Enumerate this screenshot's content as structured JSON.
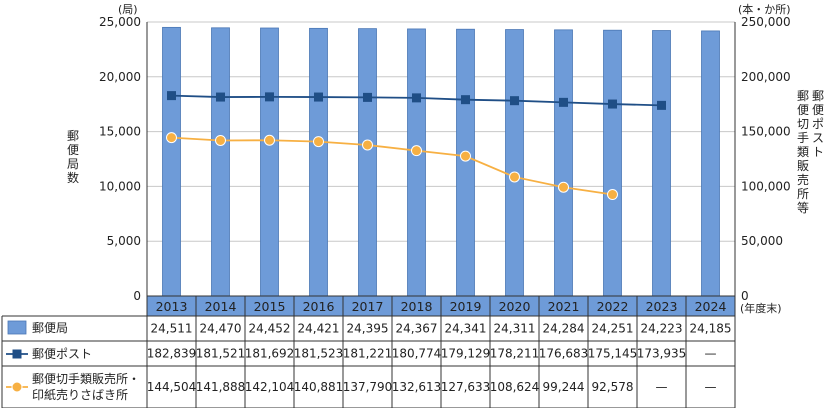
{
  "chart_data": {
    "type": "bar",
    "categories": [
      "2013",
      "2014",
      "2015",
      "2016",
      "2017",
      "2018",
      "2019",
      "2020",
      "2021",
      "2022",
      "2023",
      "2024"
    ],
    "x_unit": "(年度末)",
    "left_axis": {
      "unit": "(局)",
      "label": "郵便局数",
      "ticks": [
        "25,000",
        "20,000",
        "15,000",
        "10,000",
        "5,000",
        "0"
      ],
      "ylim": [
        0,
        25000
      ]
    },
    "right_axis": {
      "unit": "(本・か所)",
      "label_lines": [
        "郵便ポスト",
        "郵便切手類販売所等"
      ],
      "ticks": [
        "250,000",
        "200,000",
        "150,000",
        "100,000",
        "50,000",
        "0"
      ],
      "ylim": [
        0,
        250000
      ]
    },
    "series": [
      {
        "name": "郵便局",
        "kind": "bar",
        "axis": "left",
        "color": "#6e9bd8",
        "values": [
          24511,
          24470,
          24452,
          24421,
          24395,
          24367,
          24341,
          24311,
          24284,
          24251,
          24223,
          24185
        ],
        "labels": [
          "24,511",
          "24,470",
          "24,452",
          "24,421",
          "24,395",
          "24,367",
          "24,341",
          "24,311",
          "24,284",
          "24,251",
          "24,223",
          "24,185"
        ]
      },
      {
        "name": "郵便ポスト",
        "kind": "line",
        "axis": "right",
        "color": "#1f4e86",
        "marker": "square",
        "values": [
          182839,
          181521,
          181692,
          181523,
          181221,
          180774,
          179129,
          178211,
          176683,
          175145,
          173935,
          null
        ],
        "labels": [
          "182,839",
          "181,521",
          "181,692",
          "181,523",
          "181,221",
          "180,774",
          "179,129",
          "178,211",
          "176,683",
          "175,145",
          "173,935",
          "—"
        ]
      },
      {
        "name_lines": [
          "郵便切手類販売所・",
          "印紙売りさばき所"
        ],
        "kind": "line",
        "axis": "right",
        "color": "#f7b043",
        "marker": "circle",
        "values": [
          144504,
          141888,
          142104,
          140881,
          137790,
          132613,
          127633,
          108624,
          99244,
          92578,
          null,
          null
        ],
        "labels": [
          "144,504",
          "141,888",
          "142,104",
          "140,881",
          "137,790",
          "132,613",
          "127,633",
          "108,624",
          "99,244",
          "92,578",
          "—",
          "—"
        ]
      }
    ],
    "grid": true
  }
}
